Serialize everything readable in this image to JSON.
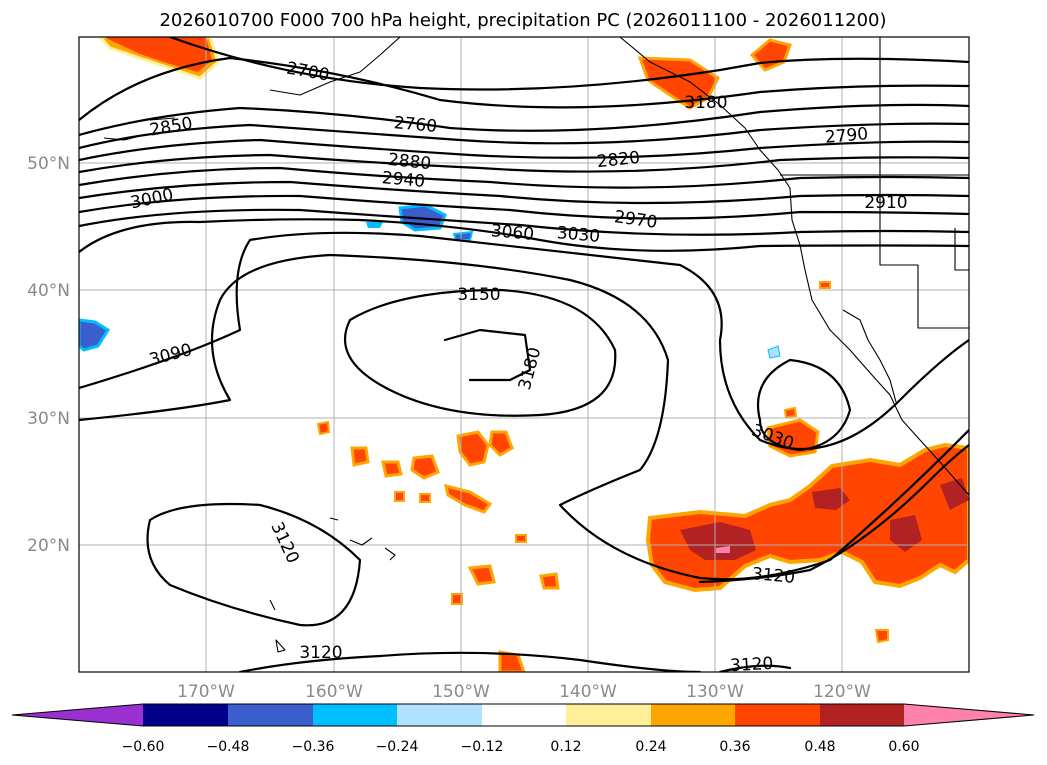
{
  "title": "2026010700 F000 700 hPa height, precipitation PC (2026011100 - 2026011200)",
  "lat_labels": [
    "50°N",
    "40°N",
    "30°N",
    "20°N"
  ],
  "lon_labels": [
    "170°W",
    "160°W",
    "150°W",
    "140°W",
    "130°W",
    "120°W"
  ],
  "contour_labels": [
    "2700",
    "2760",
    "2850",
    "2880",
    "2940",
    "3000",
    "2820",
    "2790",
    "2970",
    "2910",
    "3060",
    "3030",
    "3150",
    "3180",
    "3090",
    "3030",
    "3120",
    "3120",
    "3120",
    "3120",
    "3180"
  ],
  "colorbar": {
    "ticks": [
      "−0.60",
      "−0.48",
      "−0.36",
      "−0.24",
      "−0.12",
      "0.12",
      "0.24",
      "0.36",
      "0.48",
      "0.60"
    ],
    "colors": [
      "#9b30d0",
      "#00008b",
      "#3a5fcd",
      "#00bfff",
      "#b0e2ff",
      "#ffffff",
      "#fff099",
      "#ffa500",
      "#ff4500",
      "#b22222",
      "#ff82ab",
      "#ff82ab"
    ]
  },
  "colors": {
    "grid": "#b0b0b0",
    "contour": "#000000",
    "tick_text": "#8a8a8a"
  }
}
